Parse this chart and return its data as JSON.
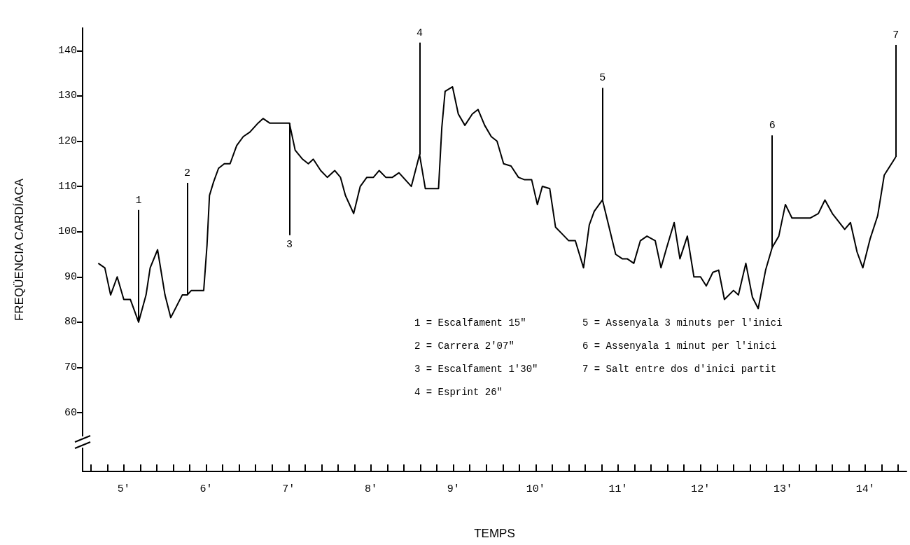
{
  "chart_data": {
    "type": "line",
    "xlabel": "TEMPS",
    "ylabel": "FREQÜENCIA CARDÍACA",
    "color": "#000000",
    "marker": "none",
    "line_style": "solid",
    "grid": false,
    "xlim": [
      4.5,
      14.5
    ],
    "xticks": [
      {
        "value": 4.6,
        "label": null
      },
      {
        "value": 4.8,
        "label": null
      },
      {
        "value": 5,
        "label": "5'"
      },
      {
        "value": 5.2,
        "label": null
      },
      {
        "value": 5.4,
        "label": null
      },
      {
        "value": 5.6,
        "label": null
      },
      {
        "value": 5.8,
        "label": null
      },
      {
        "value": 6,
        "label": "6'"
      },
      {
        "value": 6.2,
        "label": null
      },
      {
        "value": 6.4,
        "label": null
      },
      {
        "value": 6.6,
        "label": null
      },
      {
        "value": 6.8,
        "label": null
      },
      {
        "value": 7,
        "label": "7'"
      },
      {
        "value": 7.2,
        "label": null
      },
      {
        "value": 7.4,
        "label": null
      },
      {
        "value": 7.6,
        "label": null
      },
      {
        "value": 7.8,
        "label": null
      },
      {
        "value": 8,
        "label": "8'"
      },
      {
        "value": 8.2,
        "label": null
      },
      {
        "value": 8.4,
        "label": null
      },
      {
        "value": 8.6,
        "label": null
      },
      {
        "value": 8.8,
        "label": null
      },
      {
        "value": 9,
        "label": "9'"
      },
      {
        "value": 9.2,
        "label": null
      },
      {
        "value": 9.4,
        "label": null
      },
      {
        "value": 9.6,
        "label": null
      },
      {
        "value": 9.8,
        "label": null
      },
      {
        "value": 10,
        "label": "10'"
      },
      {
        "value": 10.2,
        "label": null
      },
      {
        "value": 10.4,
        "label": null
      },
      {
        "value": 10.6,
        "label": null
      },
      {
        "value": 10.8,
        "label": null
      },
      {
        "value": 11,
        "label": "11'"
      },
      {
        "value": 11.2,
        "label": null
      },
      {
        "value": 11.4,
        "label": null
      },
      {
        "value": 11.6,
        "label": null
      },
      {
        "value": 11.8,
        "label": null
      },
      {
        "value": 12,
        "label": "12'"
      },
      {
        "value": 12.2,
        "label": null
      },
      {
        "value": 12.4,
        "label": null
      },
      {
        "value": 12.6,
        "label": null
      },
      {
        "value": 12.8,
        "label": null
      },
      {
        "value": 13,
        "label": "13'"
      },
      {
        "value": 13.2,
        "label": null
      },
      {
        "value": 13.4,
        "label": null
      },
      {
        "value": 13.6,
        "label": null
      },
      {
        "value": 13.8,
        "label": null
      },
      {
        "value": 14,
        "label": "14'"
      },
      {
        "value": 14.2,
        "label": null
      },
      {
        "value": 14.4,
        "label": null
      }
    ],
    "ylim": [
      47,
      145
    ],
    "yticks": [
      60,
      70,
      80,
      90,
      100,
      110,
      120,
      130,
      140
    ],
    "x": [
      4.69,
      4.77,
      4.84,
      4.92,
      5.0,
      5.08,
      5.18,
      5.27,
      5.32,
      5.41,
      5.5,
      5.57,
      5.71,
      5.77,
      5.82,
      5.97,
      6.01,
      6.04,
      6.09,
      6.15,
      6.22,
      6.29,
      6.37,
      6.45,
      6.53,
      6.63,
      6.69,
      6.77,
      7.01,
      7.08,
      7.17,
      7.24,
      7.3,
      7.39,
      7.47,
      7.56,
      7.63,
      7.69,
      7.79,
      7.87,
      7.95,
      8.03,
      8.1,
      8.18,
      8.26,
      8.34,
      8.44,
      8.49,
      8.59,
      8.66,
      8.82,
      8.86,
      8.9,
      8.99,
      9.06,
      9.14,
      9.23,
      9.3,
      9.38,
      9.46,
      9.53,
      9.61,
      9.7,
      9.79,
      9.86,
      9.95,
      10.02,
      10.08,
      10.17,
      10.24,
      10.32,
      10.4,
      10.48,
      10.58,
      10.65,
      10.71,
      10.81,
      10.87,
      10.97,
      11.05,
      11.11,
      11.19,
      11.27,
      11.35,
      11.45,
      11.52,
      11.59,
      11.68,
      11.75,
      11.84,
      11.92,
      12.0,
      12.07,
      12.15,
      12.22,
      12.29,
      12.4,
      12.46,
      12.55,
      12.63,
      12.7,
      12.79,
      12.87,
      12.95,
      13.03,
      13.11,
      13.33,
      13.43,
      13.51,
      13.6,
      13.75,
      13.82,
      13.9,
      13.97,
      14.06,
      14.15,
      14.23,
      14.37
    ],
    "values": [
      93,
      92,
      86,
      90,
      85,
      85,
      80,
      86,
      92,
      96,
      86,
      81,
      86,
      86,
      87,
      87,
      97,
      108,
      111,
      114,
      115,
      115,
      119,
      121,
      122,
      124,
      125,
      124,
      124,
      118,
      116,
      115,
      116,
      113.5,
      112,
      113.5,
      112,
      108,
      104,
      110,
      112,
      112,
      113.5,
      112,
      112,
      113,
      111,
      110,
      117,
      109.5,
      109.5,
      123,
      131,
      132,
      126,
      123.5,
      126,
      127,
      123.5,
      121,
      120,
      115,
      114.5,
      112,
      111.5,
      111.5,
      106,
      110,
      109.5,
      101,
      99.5,
      98,
      98,
      92,
      101.5,
      104.5,
      107,
      102.5,
      95,
      94,
      94,
      93,
      98,
      99,
      98,
      92,
      96.5,
      102,
      94,
      99,
      90,
      90,
      88,
      91,
      91.5,
      85,
      87,
      86,
      93,
      85.5,
      83,
      91.5,
      96.5,
      99,
      106,
      103,
      103,
      104,
      107,
      104,
      100.5,
      102,
      95.5,
      92,
      98.5,
      103.5,
      112.5,
      116.5
    ],
    "annotations": [
      {
        "text": "1",
        "x": 5.18,
        "y": 80
      },
      {
        "text": "2",
        "x": 5.77,
        "y": 86
      },
      {
        "text": "3",
        "x": 7.01,
        "y": 124
      },
      {
        "text": "4",
        "x": 8.59,
        "y": 117
      },
      {
        "text": "5",
        "x": 10.81,
        "y": 107
      },
      {
        "text": "6",
        "x": 12.87,
        "y": 96.5
      },
      {
        "text": "7",
        "x": 14.37,
        "y": 116.5
      },
      "1 = Escalfament 15\"",
      "2 = Carrera 2'07\"",
      "3 = Escalfament 1'30\"",
      "4 = Esprint 26\"",
      "5 = Assenyala 3 minuts per l'inici",
      "6 = Assenyala 1 minut per l'inici",
      "7 = Salt entre dos d'inici partit"
    ]
  }
}
